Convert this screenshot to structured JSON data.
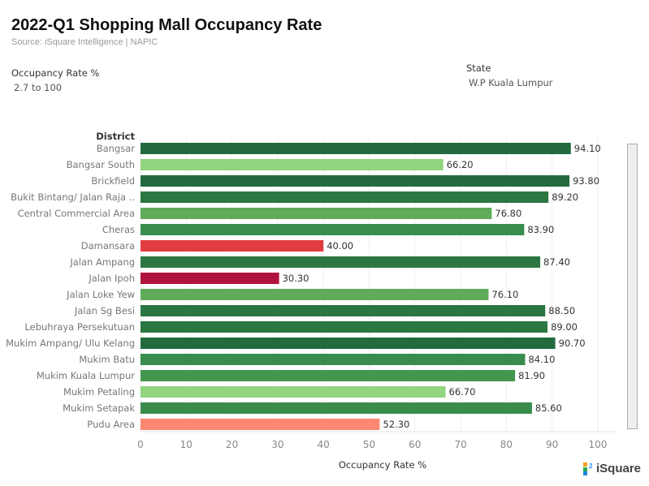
{
  "title": "2022-Q1 Shopping Mall Occupancy Rate",
  "source": "Source: iSquare Intelligence | NAPIC",
  "filters": {
    "occupancy_label": "Occupancy Rate %",
    "occupancy_value": "2.7 to 100",
    "state_label": "State",
    "state_value": "W.P Kuala Lumpur"
  },
  "logo": "iSquare",
  "chart_data": {
    "type": "bar",
    "orientation": "horizontal",
    "ylabel": "District",
    "xlabel": "Occupancy Rate %",
    "xlim": [
      0,
      100
    ],
    "xticks": [
      0,
      10,
      20,
      30,
      40,
      50,
      60,
      70,
      80,
      90,
      100
    ],
    "grid": "vertical",
    "categories": [
      "Bangsar",
      "Bangsar South",
      "Brickfield",
      "Bukit Bintang/ Jalan Raja ..",
      "Central Commercial Area",
      "Cheras",
      "Damansara",
      "Jalan Ampang",
      "Jalan Ipoh",
      "Jalan Loke Yew",
      "Jalan Sg Besi",
      "Lebuhraya Persekutuan",
      "Mukim Ampang/ Ulu Kelang",
      "Mukim Batu",
      "Mukim Kuala Lumpur",
      "Mukim Petaling",
      "Mukim Setapak",
      "Pudu Area"
    ],
    "values": [
      94.1,
      66.2,
      93.8,
      89.2,
      76.8,
      83.9,
      40.0,
      87.4,
      30.3,
      76.1,
      88.5,
      89.0,
      90.7,
      84.1,
      81.9,
      66.7,
      85.6,
      52.3
    ],
    "labels": [
      "94.10",
      "66.20",
      "93.80",
      "89.20",
      "76.80",
      "83.90",
      "40.00",
      "87.40",
      "30.30",
      "76.10",
      "88.50",
      "89.00",
      "90.70",
      "84.10",
      "81.90",
      "66.70",
      "85.60",
      "52.30"
    ],
    "color_scale": "diverging red-green by value"
  }
}
